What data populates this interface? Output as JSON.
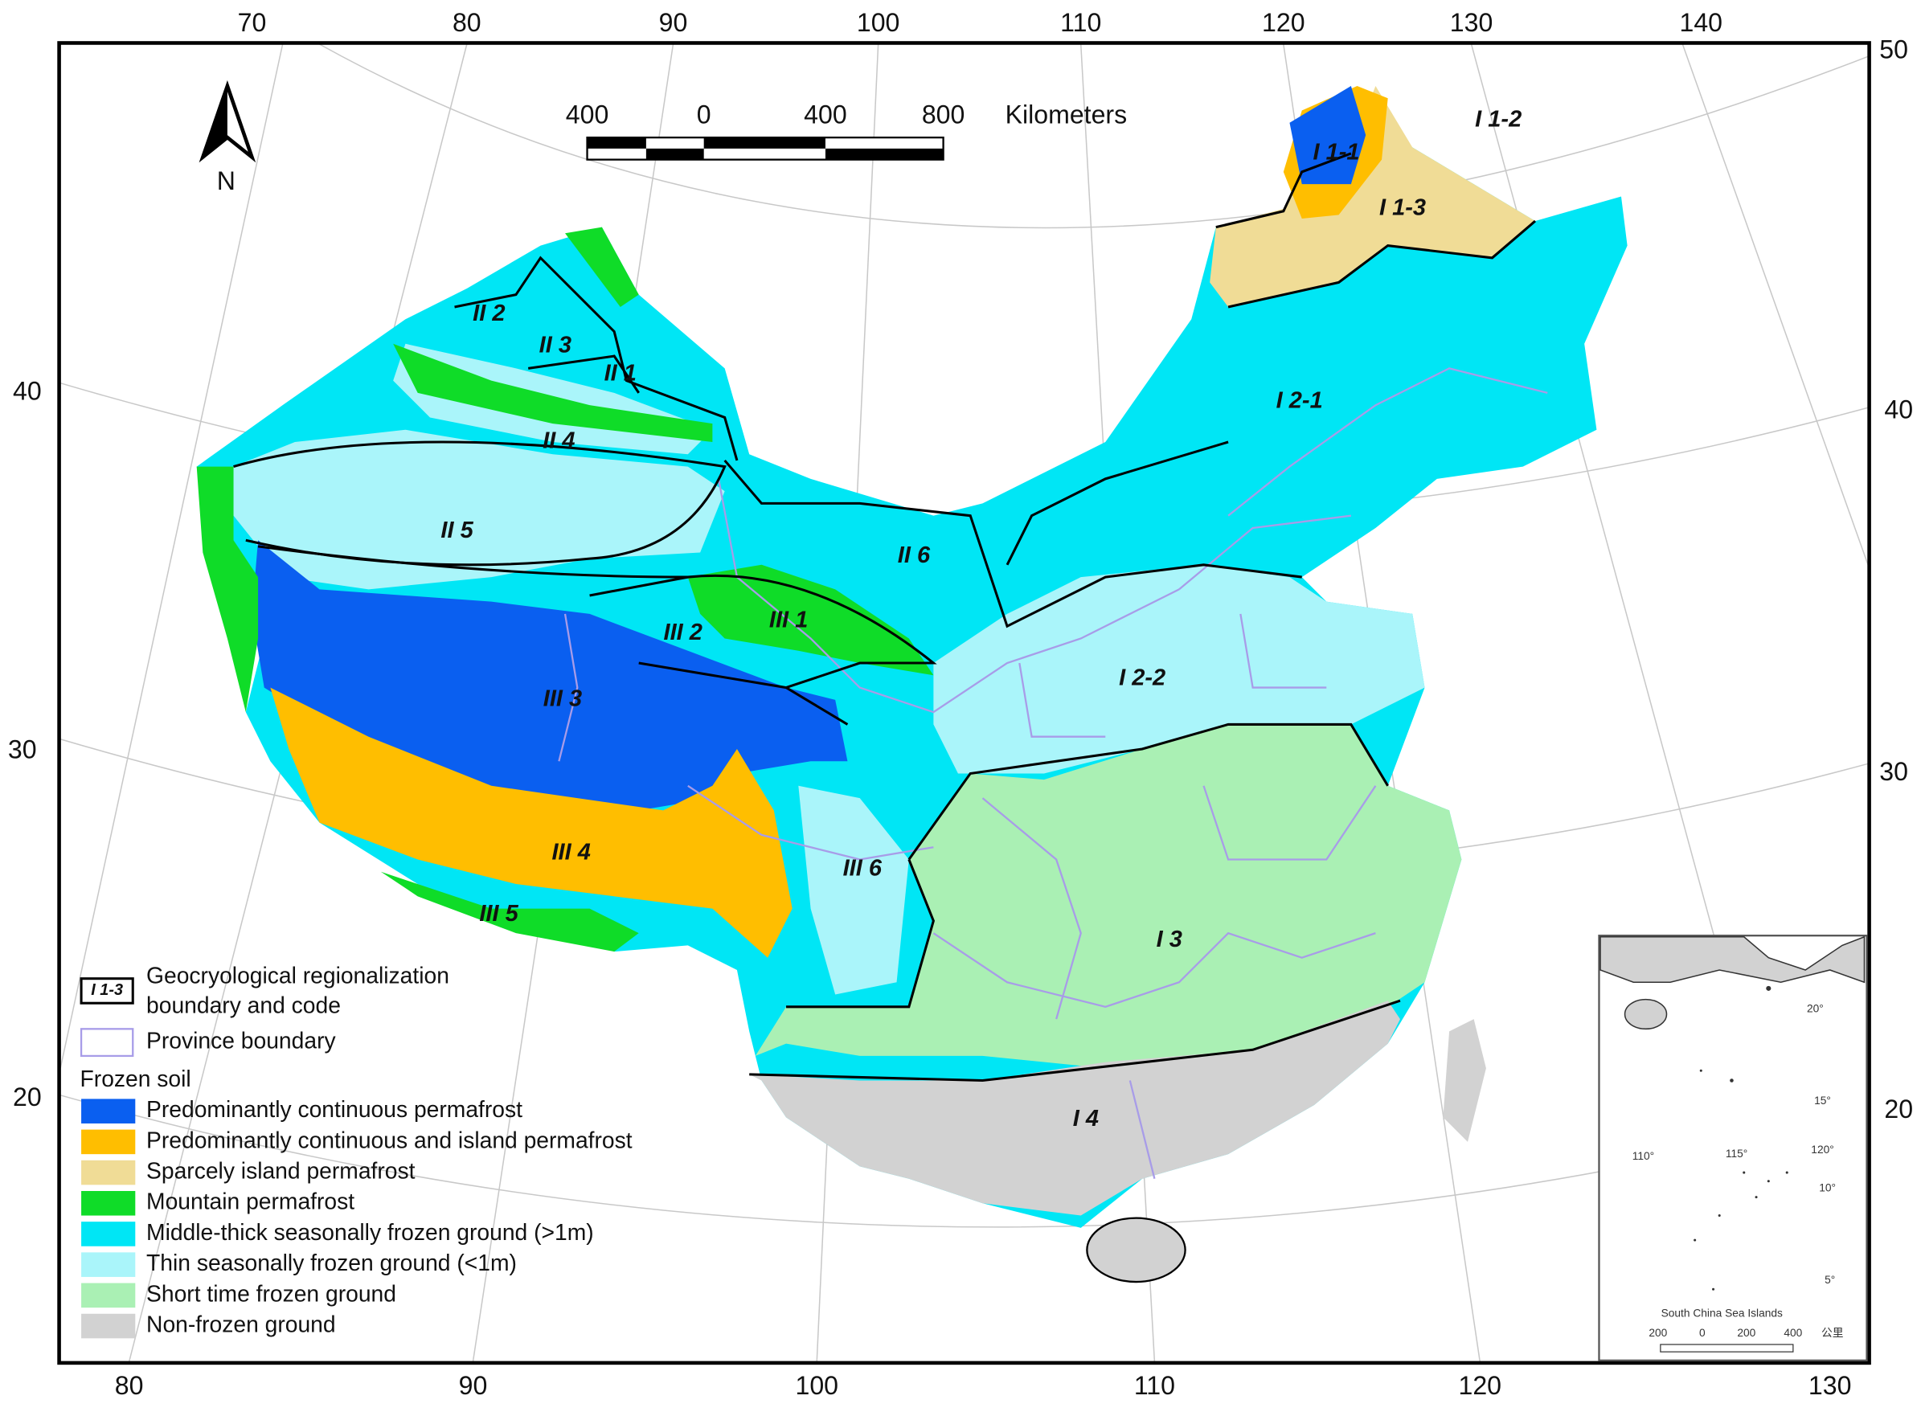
{
  "graticule": {
    "top": [
      "70",
      "80",
      "90",
      "100",
      "110",
      "120",
      "130",
      "140"
    ],
    "bottom": [
      "80",
      "90",
      "100",
      "110",
      "120",
      "130"
    ],
    "left": [
      "40",
      "30",
      "20"
    ],
    "right": [
      "50",
      "40",
      "30",
      "20"
    ]
  },
  "north_arrow": "N",
  "scale_bar": {
    "labels": [
      "400",
      "0",
      "400",
      "800"
    ],
    "unit": "Kilometers"
  },
  "regions": [
    "I 1-1",
    "I 1-2",
    "I 1-3",
    "II 2",
    "II 3",
    "II 1",
    "I 2-1",
    "II 4",
    "II 5",
    "II 6",
    "III 2",
    "III 1",
    "I 2-2",
    "III 3",
    "III 4",
    "III 6",
    "III 5",
    "I 3",
    "I 4"
  ],
  "legend": {
    "boundary_code": "I 1-3",
    "boundary_label": [
      "Geocryological regionalization",
      "boundary and code"
    ],
    "province_label": "Province boundary",
    "title": "Frozen soil",
    "items": [
      {
        "label": "Predominantly continuous permafrost",
        "color": "#0a5ff0"
      },
      {
        "label": "Predominantly continuous and island permafrost",
        "color": "#ffbe00"
      },
      {
        "label": "Sparcely island permafrost",
        "color": "#f0dc96"
      },
      {
        "label": "Mountain permafrost",
        "color": "#0fdc28"
      },
      {
        "label": "Middle-thick seasonally frozen ground (>1m)",
        "color": "#00e6f5"
      },
      {
        "label": "Thin seasonally frozen ground (<1m)",
        "color": "#aaf5fa"
      },
      {
        "label": "Short time frozen ground",
        "color": "#aaf0b4"
      },
      {
        "label": "Non-frozen ground",
        "color": "#d2d2d2"
      }
    ]
  },
  "inset": {
    "title": "South China Sea Islands",
    "graticule": [
      "20°",
      "15°",
      "120°",
      "110°",
      "115°",
      "10°",
      "5°"
    ],
    "scale": [
      "200",
      "0",
      "200",
      "400",
      "公里"
    ]
  }
}
